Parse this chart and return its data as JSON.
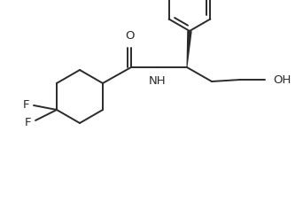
{
  "background_color": "#ffffff",
  "line_color": "#2a2a2a",
  "line_width": 1.4,
  "font_size": 9.5,
  "fig_width": 3.42,
  "fig_height": 2.28,
  "dpi": 100,
  "xlim": [
    0,
    342
  ],
  "ylim": [
    0,
    228
  ]
}
